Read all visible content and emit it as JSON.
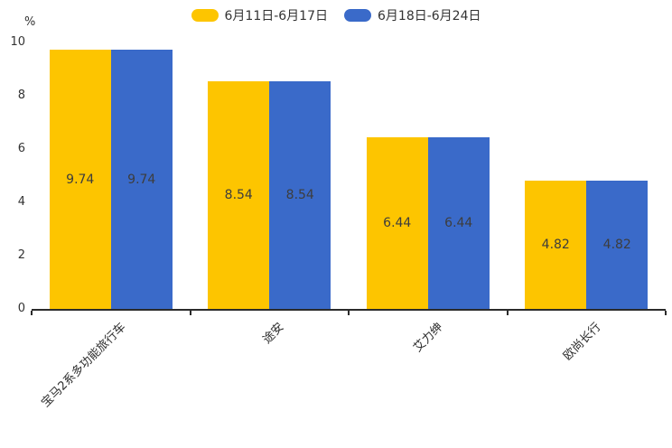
{
  "chart_data": {
    "type": "bar",
    "categories": [
      "宝马2系多功能旅行车",
      "途安",
      "艾力绅",
      "欧尚长行"
    ],
    "series": [
      {
        "name": "6月11日-6月17日",
        "color": "#FDC500",
        "values": [
          9.74,
          8.54,
          6.44,
          4.82
        ]
      },
      {
        "name": "6月18日-6月24日",
        "color": "#3A6AC9",
        "values": [
          9.74,
          8.54,
          6.44,
          4.82
        ]
      }
    ],
    "value_labels": [
      [
        "9.74",
        "8.54",
        "6.44",
        "4.82"
      ],
      [
        "9.74",
        "8.54",
        "6.44",
        "4.82"
      ]
    ],
    "title": "",
    "xlabel": "",
    "ylabel": "%",
    "ylim": [
      0,
      10
    ],
    "yticks": [
      0,
      2,
      4,
      6,
      8,
      10
    ],
    "grid": false,
    "legend_position": "top",
    "axis_color": "#2b2b2b",
    "text_color": "#333333"
  }
}
